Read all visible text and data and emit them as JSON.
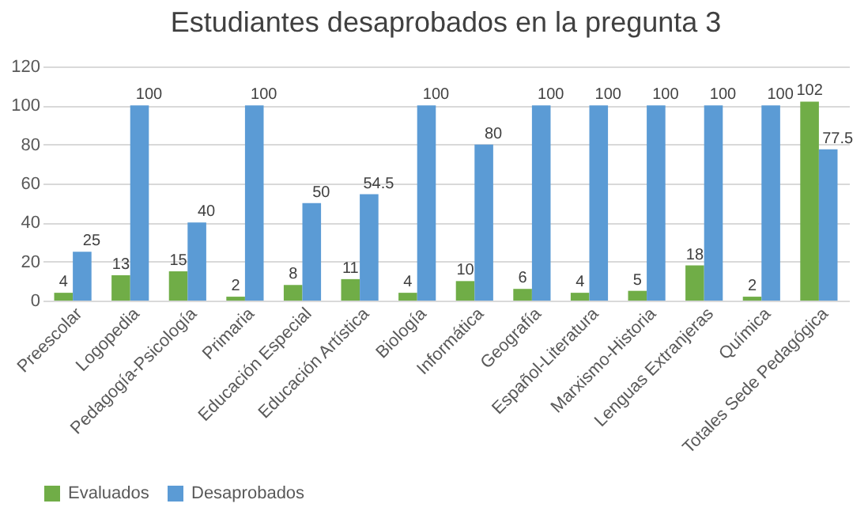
{
  "chart_data": {
    "type": "bar",
    "title": "Estudiantes desaprobados en la pregunta 3",
    "categories": [
      "Preescolar",
      "Logopedia",
      "Pedagogía-Psicología",
      "Primaria",
      "Educación Especial",
      "Educación Artística",
      "Biología",
      "Informática",
      "Geografía",
      "Español-Literatura",
      "Marxismo-Historia",
      "Lenguas Extranjeras",
      "Química",
      "Totales Sede Pedagógica"
    ],
    "series": [
      {
        "name": "Evaluados",
        "color": "#70ad47",
        "values": [
          4,
          13,
          15,
          2,
          8,
          11,
          4,
          10,
          6,
          4,
          5,
          18,
          2,
          102
        ]
      },
      {
        "name": "Desaprobados",
        "color": "#5b9bd5",
        "values": [
          25,
          100,
          40,
          100,
          50,
          54.5,
          100,
          80,
          100,
          100,
          100,
          100,
          100,
          77.5
        ]
      }
    ],
    "ylim": [
      0,
      120
    ],
    "yticks": [
      0,
      20,
      40,
      60,
      80,
      100,
      120
    ],
    "grid": "y",
    "legend": "bottom",
    "data_labels": true
  }
}
